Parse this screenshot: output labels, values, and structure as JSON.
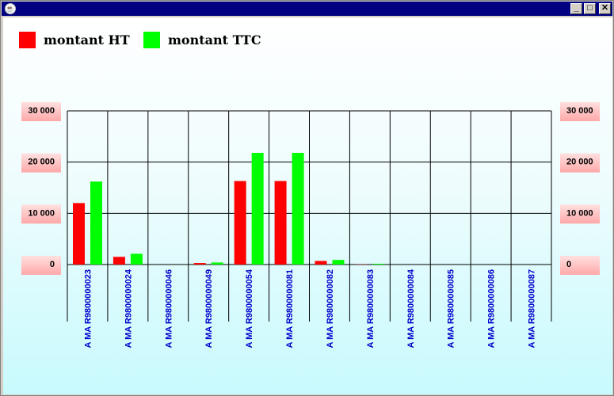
{
  "window": {
    "icons": {
      "app": "java-cup-icon",
      "minimize": "minimize-icon",
      "maximize": "maximize-icon",
      "close": "close-icon"
    },
    "buttons": {
      "minimize": "_",
      "maximize": "□",
      "close": "✕"
    }
  },
  "chart_data": {
    "type": "bar",
    "categories": [
      "A MA R9800000023",
      "A MA R9800000024",
      "A MA R9800000046",
      "A MA R9800000049",
      "A MA R9800000054",
      "A MA R9800000081",
      "A MA R9800000082",
      "A MA R9800000083",
      "A MA R9800000084",
      "A MA R9800000085",
      "A MA R9800000086",
      "A MA R9800000087"
    ],
    "series": [
      {
        "name": "montant HT",
        "color": "#ff0000",
        "values": [
          12000,
          1500,
          0,
          300,
          16300,
          16300,
          700,
          50,
          0,
          0,
          0,
          0
        ]
      },
      {
        "name": "montant TTC",
        "color": "#00ff00",
        "values": [
          16200,
          2100,
          0,
          400,
          21800,
          21800,
          900,
          150,
          0,
          0,
          0,
          0
        ]
      }
    ],
    "ylim": [
      0,
      30000
    ],
    "yticks": [
      0,
      10000,
      20000,
      30000
    ],
    "ytick_labels": [
      "0",
      "10 000",
      "20 000",
      "30 000"
    ],
    "grid": true,
    "legend_position": "top-left",
    "axis_label_color": "#0000cc"
  }
}
